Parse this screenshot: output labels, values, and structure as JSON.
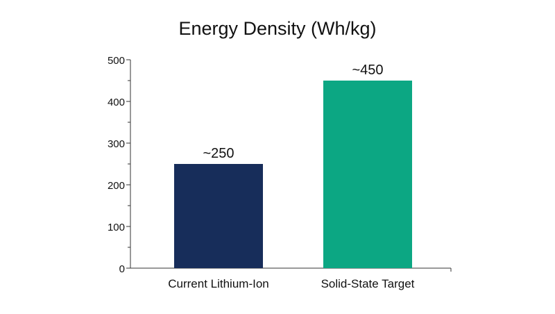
{
  "chart_data": {
    "type": "bar",
    "title": "Energy Density (Wh/kg)",
    "xlabel": "",
    "ylabel": "",
    "categories": [
      "Current Lithium-Ion",
      "Solid-State Target"
    ],
    "values": [
      250,
      450
    ],
    "data_labels": [
      "~250",
      "~450"
    ],
    "bar_colors": [
      "#172d5a",
      "#0ca783"
    ],
    "ylim": [
      0,
      500
    ],
    "yticks": [
      0,
      100,
      200,
      300,
      400,
      500
    ],
    "grid": false,
    "legend": "none"
  }
}
